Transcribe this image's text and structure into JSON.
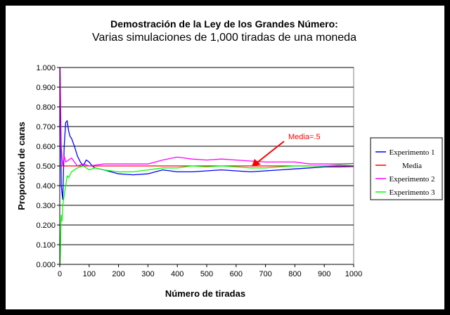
{
  "chart_data": {
    "type": "line",
    "title": "Demostración de la Ley de los Grandes Número:",
    "subtitle": "Varias simulaciones de 1,000 tiradas de una moneda",
    "xlabel": "Número de tiradas",
    "ylabel": "Proporción de caras",
    "xlim": [
      0,
      1000
    ],
    "ylim": [
      0,
      1
    ],
    "xticks": [
      "0",
      "100",
      "200",
      "300",
      "400",
      "500",
      "600",
      "700",
      "800",
      "900",
      "1000"
    ],
    "yticks": [
      "0.000",
      "0.100",
      "0.200",
      "0.300",
      "0.400",
      "0.500",
      "0.600",
      "0.700",
      "0.800",
      "0.900",
      "1.000"
    ],
    "grid": "horizontal",
    "legend_position": "right",
    "annotation": {
      "text": "Media=.5",
      "points_to": [
        640,
        0.5
      ]
    },
    "series": [
      {
        "name": "Experimento 1",
        "color": "#0000ff",
        "x": [
          1,
          5,
          10,
          15,
          20,
          25,
          30,
          35,
          40,
          50,
          60,
          70,
          80,
          90,
          100,
          110,
          120,
          150,
          200,
          250,
          300,
          350,
          400,
          450,
          500,
          550,
          600,
          650,
          700,
          750,
          800,
          850,
          900,
          950,
          1000
        ],
        "y": [
          1.0,
          0.4,
          0.33,
          0.6,
          0.72,
          0.73,
          0.68,
          0.65,
          0.64,
          0.6,
          0.55,
          0.52,
          0.5,
          0.53,
          0.52,
          0.5,
          0.49,
          0.48,
          0.46,
          0.455,
          0.46,
          0.48,
          0.47,
          0.47,
          0.475,
          0.48,
          0.475,
          0.47,
          0.475,
          0.48,
          0.485,
          0.49,
          0.495,
          0.495,
          0.497
        ]
      },
      {
        "name": "Media",
        "color": "#ff0000",
        "x": [
          0,
          1000
        ],
        "y": [
          0.5,
          0.5
        ]
      },
      {
        "name": "Experimento 2",
        "color": "#ff00ff",
        "x": [
          1,
          5,
          10,
          15,
          20,
          30,
          40,
          50,
          60,
          80,
          100,
          150,
          200,
          250,
          300,
          350,
          400,
          450,
          500,
          550,
          600,
          650,
          700,
          750,
          800,
          850,
          900,
          950,
          1000
        ],
        "y": [
          1.0,
          0.6,
          0.5,
          0.55,
          0.52,
          0.53,
          0.54,
          0.52,
          0.5,
          0.51,
          0.5,
          0.51,
          0.51,
          0.51,
          0.51,
          0.53,
          0.545,
          0.535,
          0.53,
          0.535,
          0.53,
          0.525,
          0.52,
          0.52,
          0.52,
          0.51,
          0.51,
          0.51,
          0.513
        ]
      },
      {
        "name": "Experimento 3",
        "color": "#00ff00",
        "x": [
          1,
          5,
          8,
          10,
          15,
          20,
          25,
          30,
          40,
          50,
          60,
          80,
          100,
          120,
          150,
          200,
          250,
          300,
          350,
          400,
          450,
          500,
          550,
          600,
          650,
          700,
          750,
          800,
          850,
          900,
          950,
          1000
        ],
        "y": [
          0.0,
          0.25,
          0.22,
          0.3,
          0.35,
          0.4,
          0.45,
          0.44,
          0.47,
          0.48,
          0.49,
          0.5,
          0.48,
          0.49,
          0.48,
          0.47,
          0.47,
          0.48,
          0.49,
          0.49,
          0.5,
          0.495,
          0.5,
          0.495,
          0.49,
          0.49,
          0.495,
          0.5,
          0.5,
          0.5,
          0.505,
          0.503
        ]
      }
    ]
  }
}
